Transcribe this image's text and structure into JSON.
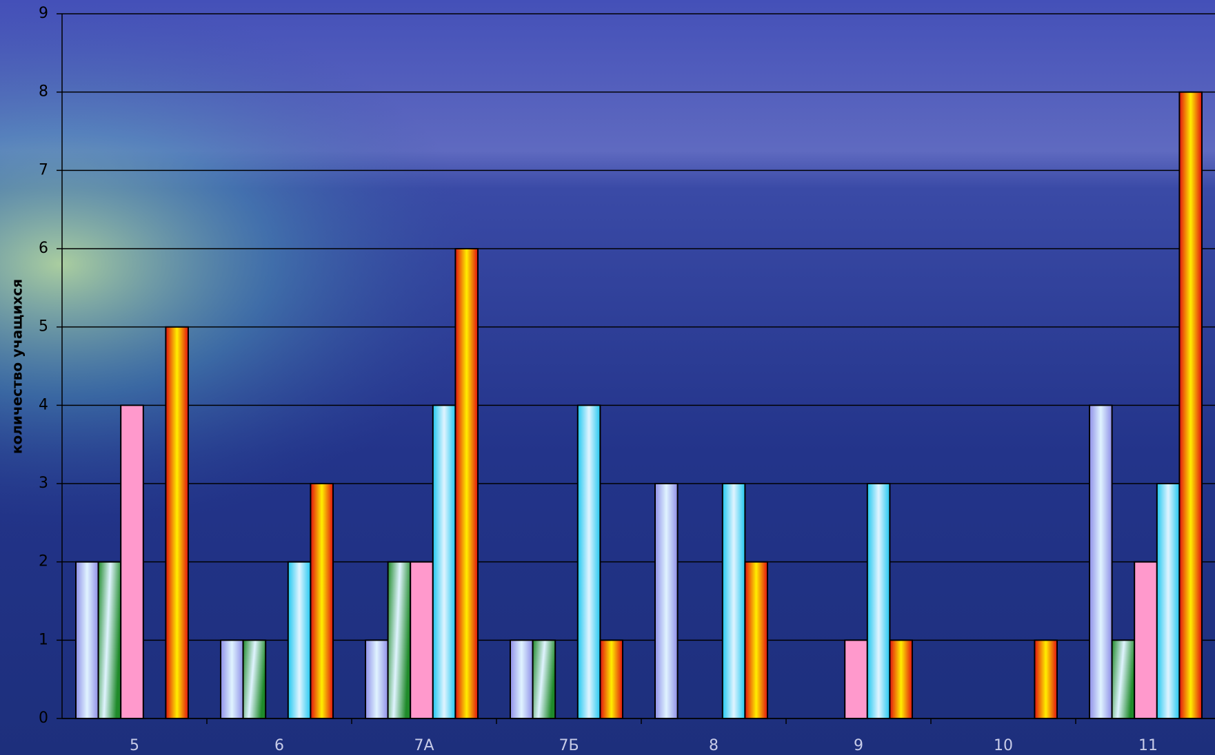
{
  "chart_data": {
    "type": "bar",
    "y_label": "количество учащихся",
    "categories": [
      "5",
      "6",
      "7А",
      "7Б",
      "8",
      "9",
      "10",
      "11"
    ],
    "series": [
      {
        "color": "#8f8fe8",
        "values": [
          2,
          1,
          1,
          1,
          3,
          0,
          0,
          4
        ]
      },
      {
        "color": "#1f8a2a",
        "values": [
          2,
          1,
          2,
          1,
          0,
          0,
          0,
          1
        ]
      },
      {
        "color": "#ff99cc",
        "values": [
          4,
          0,
          2,
          0,
          0,
          1,
          0,
          2
        ]
      },
      {
        "color": "#22c8f0",
        "values": [
          0,
          2,
          4,
          4,
          3,
          3,
          0,
          3
        ]
      },
      {
        "color": "#e01010",
        "values": [
          5,
          3,
          6,
          1,
          2,
          1,
          1,
          8
        ]
      }
    ],
    "ylim": [
      0,
      9
    ],
    "yticks": [
      0,
      1,
      2,
      3,
      4,
      5,
      6,
      7,
      8,
      9
    ],
    "grid": true
  }
}
